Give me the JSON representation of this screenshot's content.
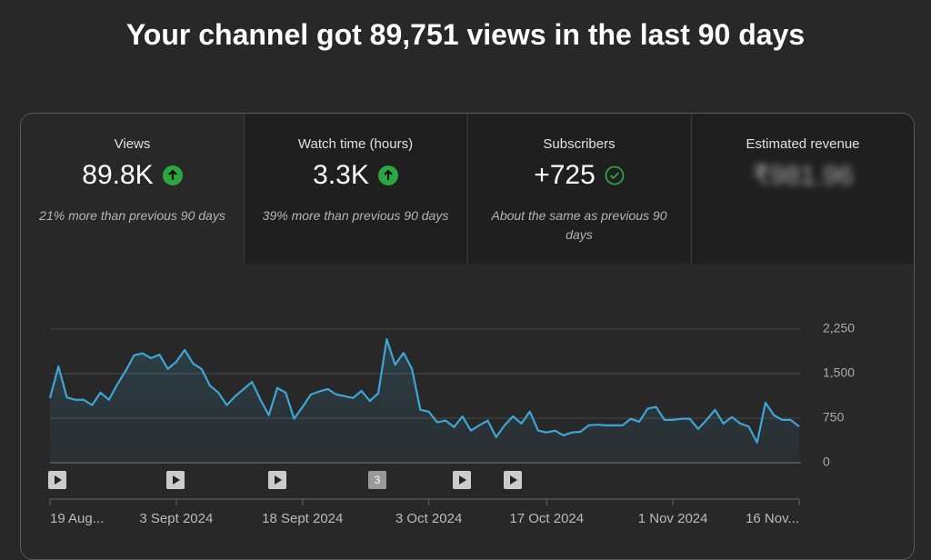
{
  "header": {
    "title": "Your channel got 89,751 views in the last 90 days"
  },
  "cards": [
    {
      "label": "Views",
      "value": "89.8K",
      "note": "21% more than previous 90 days"
    },
    {
      "label": "Watch time (hours)",
      "value": "3.3K",
      "note": "39% more than previous 90 days"
    },
    {
      "label": "Subscribers",
      "value": "+725",
      "note": "About the same as previous 90 days"
    },
    {
      "label": "Estimated revenue",
      "value": "₹981.96"
    }
  ],
  "video_marker_label": "3",
  "chart_data": {
    "type": "area",
    "categories": [
      "19 Aug...",
      null,
      null,
      null,
      null,
      null,
      null,
      null,
      null,
      null,
      null,
      null,
      null,
      null,
      null,
      "3 Sept 2024",
      null,
      null,
      null,
      null,
      null,
      null,
      null,
      null,
      null,
      null,
      null,
      null,
      null,
      null,
      "18 Sept 2024",
      null,
      null,
      null,
      null,
      null,
      null,
      null,
      null,
      null,
      null,
      null,
      null,
      null,
      null,
      "3 Oct 2024",
      null,
      null,
      null,
      null,
      null,
      null,
      null,
      null,
      null,
      null,
      null,
      null,
      null,
      "17 Oct 2024",
      null,
      null,
      null,
      null,
      null,
      null,
      null,
      null,
      null,
      null,
      null,
      null,
      null,
      null,
      "1 Nov 2024",
      null,
      null,
      null,
      null,
      null,
      null,
      null,
      null,
      null,
      null,
      null,
      null,
      null,
      null,
      "16 Nov..."
    ],
    "values": [
      1090,
      1620,
      1100,
      1060,
      1060,
      970,
      1180,
      1060,
      1320,
      1550,
      1810,
      1840,
      1760,
      1820,
      1580,
      1700,
      1900,
      1670,
      1580,
      1300,
      1180,
      970,
      1120,
      1240,
      1360,
      1060,
      800,
      1260,
      1180,
      740,
      940,
      1150,
      1200,
      1240,
      1150,
      1120,
      1090,
      1210,
      1040,
      1170,
      2080,
      1650,
      1850,
      1580,
      890,
      860,
      680,
      710,
      600,
      780,
      540,
      630,
      710,
      430,
      630,
      780,
      660,
      860,
      540,
      510,
      540,
      460,
      510,
      520,
      630,
      640,
      630,
      630,
      630,
      740,
      690,
      910,
      940,
      720,
      720,
      740,
      740,
      570,
      720,
      890,
      660,
      770,
      660,
      610,
      340,
      1010,
      800,
      720,
      720,
      610
    ],
    "color": "#3ea6d6",
    "ylim": [
      0,
      2250
    ],
    "yticks": [
      0,
      750,
      {
        "value": 1500,
        "label": "1,500"
      },
      {
        "value": 2250,
        "label": "2,250"
      }
    ],
    "grid": true
  }
}
